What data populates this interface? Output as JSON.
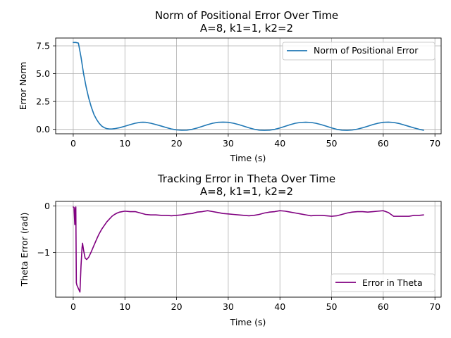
{
  "chart_data": [
    {
      "type": "line",
      "title": "Norm of Positional Error Over Time",
      "subtitle": "A=8, k1=1, k2=2",
      "xlabel": "Time (s)",
      "ylabel": "Error Norm",
      "xlim": [
        -3.4,
        71.2
      ],
      "ylim": [
        -0.4,
        8.2
      ],
      "xticks": [
        0,
        10,
        20,
        30,
        40,
        50,
        60,
        70
      ],
      "yticks": [
        0.0,
        2.5,
        5.0,
        7.5
      ],
      "ytick_labels": [
        "0.0",
        "2.5",
        "5.0",
        "7.5"
      ],
      "grid": true,
      "legend_position": "top-right",
      "series": [
        {
          "name": "Norm of Positional Error",
          "color": "#1f77b4",
          "x": [
            0,
            0.5,
            1.0,
            1.5,
            2,
            2.5,
            3,
            3.5,
            4,
            4.5,
            5,
            5.5,
            6,
            6.5,
            7,
            7.5,
            8,
            9,
            10,
            11,
            12,
            13,
            13.5,
            14,
            15,
            16,
            17,
            18,
            19,
            20,
            21,
            22,
            23,
            24,
            25,
            26,
            27,
            28,
            29,
            30,
            31,
            32,
            33,
            34,
            35,
            36,
            37,
            38,
            39,
            40,
            41,
            42,
            43,
            44,
            45,
            46,
            47,
            48,
            49,
            50,
            51,
            52,
            53,
            54,
            55,
            56,
            57,
            58,
            59,
            60,
            61,
            62,
            63,
            64,
            65,
            66,
            67,
            67.8
          ],
          "values": [
            7.8,
            7.8,
            7.75,
            6.5,
            5.0,
            3.8,
            2.8,
            2.0,
            1.35,
            0.9,
            0.55,
            0.3,
            0.15,
            0.06,
            0.03,
            0.03,
            0.06,
            0.15,
            0.28,
            0.42,
            0.55,
            0.63,
            0.64,
            0.63,
            0.55,
            0.43,
            0.3,
            0.16,
            0.03,
            -0.05,
            -0.08,
            -0.07,
            0.0,
            0.12,
            0.27,
            0.42,
            0.55,
            0.63,
            0.65,
            0.63,
            0.55,
            0.43,
            0.29,
            0.14,
            0.01,
            -0.07,
            -0.09,
            -0.07,
            0.0,
            0.12,
            0.27,
            0.42,
            0.55,
            0.62,
            0.64,
            0.62,
            0.54,
            0.42,
            0.28,
            0.13,
            0.0,
            -0.07,
            -0.09,
            -0.06,
            0.02,
            0.14,
            0.28,
            0.43,
            0.55,
            0.63,
            0.65,
            0.62,
            0.53,
            0.4,
            0.26,
            0.12,
            0.0,
            -0.08
          ]
        }
      ]
    },
    {
      "type": "line",
      "title": "Tracking Error in Theta Over Time",
      "subtitle": "A=8, k1=1, k2=2",
      "xlabel": "Time (s)",
      "ylabel": "Theta Error (rad)",
      "xlim": [
        -3.4,
        71.2
      ],
      "ylim": [
        -1.96,
        0.1
      ],
      "xticks": [
        0,
        10,
        20,
        30,
        40,
        50,
        60,
        70
      ],
      "yticks": [
        0,
        -1
      ],
      "ytick_labels": [
        "0",
        "−1"
      ],
      "grid": true,
      "legend_position": "bottom-right",
      "series": [
        {
          "name": "Error in Theta",
          "color": "#800080",
          "x": [
            0,
            0.15,
            0.3,
            0.4,
            0.5,
            0.6,
            0.7,
            0.9,
            1.1,
            1.3,
            1.5,
            1.7,
            1.8,
            2.0,
            2.3,
            2.6,
            3.0,
            3.5,
            4,
            4.5,
            5,
            5.5,
            6,
            6.5,
            7,
            7.5,
            8,
            8.5,
            9,
            10,
            11,
            12,
            13,
            14,
            15,
            16,
            17,
            18,
            19,
            20,
            21,
            22,
            23,
            24,
            25,
            26,
            27,
            28,
            29,
            30,
            31,
            32,
            33,
            34,
            35,
            36,
            37,
            38,
            39,
            40,
            41,
            42,
            43,
            44,
            45,
            46,
            47,
            48,
            49,
            50,
            51,
            52,
            53,
            54,
            55,
            56,
            57,
            58,
            59,
            60,
            61,
            62,
            63,
            64,
            65,
            66,
            67,
            67.8
          ],
          "values": [
            -0.02,
            -0.03,
            -0.4,
            -0.05,
            -0.02,
            -1.65,
            -1.7,
            -1.75,
            -1.8,
            -1.85,
            -1.3,
            -0.9,
            -0.8,
            -0.95,
            -1.12,
            -1.15,
            -1.1,
            -0.98,
            -0.85,
            -0.72,
            -0.6,
            -0.5,
            -0.42,
            -0.34,
            -0.28,
            -0.22,
            -0.18,
            -0.15,
            -0.13,
            -0.11,
            -0.12,
            -0.12,
            -0.15,
            -0.18,
            -0.19,
            -0.19,
            -0.2,
            -0.2,
            -0.21,
            -0.2,
            -0.19,
            -0.17,
            -0.16,
            -0.13,
            -0.12,
            -0.1,
            -0.12,
            -0.14,
            -0.16,
            -0.17,
            -0.18,
            -0.19,
            -0.2,
            -0.21,
            -0.2,
            -0.18,
            -0.15,
            -0.13,
            -0.12,
            -0.1,
            -0.11,
            -0.13,
            -0.15,
            -0.17,
            -0.19,
            -0.21,
            -0.2,
            -0.2,
            -0.21,
            -0.22,
            -0.21,
            -0.18,
            -0.15,
            -0.13,
            -0.12,
            -0.12,
            -0.13,
            -0.12,
            -0.11,
            -0.1,
            -0.14,
            -0.22,
            -0.22,
            -0.22,
            -0.22,
            -0.2,
            -0.2,
            -0.19
          ]
        }
      ]
    }
  ]
}
